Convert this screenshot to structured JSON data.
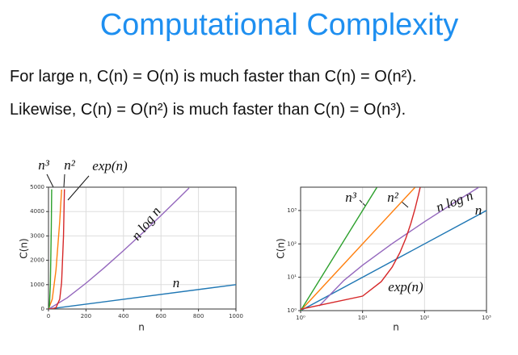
{
  "header": {
    "title": "Computational Complexity"
  },
  "body": [
    "For large n, C(n) = O(n) is much faster than C(n) = O(n²).",
    "Likewise, C(n) = O(n²) is much faster than C(n) = O(n³)."
  ],
  "chart_data": [
    {
      "type": "line",
      "xlabel": "n",
      "ylabel": "C(n)",
      "log_scale": false,
      "grid": true,
      "xlim": [
        0,
        1000
      ],
      "ylim": [
        0,
        5000
      ],
      "xticks": [
        0,
        200,
        400,
        600,
        800,
        1000
      ],
      "yticks": [
        0,
        1000,
        2000,
        3000,
        4000,
        5000
      ],
      "series": [
        {
          "name": "n",
          "color": "#1f77b4",
          "x": [
            0,
            1000
          ],
          "values": [
            0,
            1000
          ]
        },
        {
          "name": "n log n",
          "color": "#9467bd",
          "x": [
            1,
            100,
            200,
            300,
            400,
            500,
            600,
            700,
            750
          ],
          "values": [
            0,
            461,
            1060,
            1711,
            2397,
            3107,
            3838,
            4586,
            4965
          ]
        },
        {
          "name": "n²",
          "color": "#ff7f0e",
          "x": [
            0,
            20,
            40,
            60,
            70
          ],
          "values": [
            0,
            400,
            1600,
            3600,
            4900
          ]
        },
        {
          "name": "n³",
          "color": "#2ca02c",
          "x": [
            0,
            5,
            10,
            15,
            17
          ],
          "values": [
            0,
            125,
            1000,
            3375,
            4913
          ]
        },
        {
          "name": "exp(n)",
          "color": "#d62728",
          "x": [
            0,
            20,
            40,
            60,
            70,
            80,
            85
          ],
          "values": [
            1,
            7,
            55,
            403,
            1097,
            2981,
            4915
          ]
        }
      ]
    },
    {
      "type": "line",
      "xlabel": "n",
      "ylabel": "C(n)",
      "log_scale": true,
      "grid": true,
      "xlim": [
        1,
        1000
      ],
      "ylim": [
        1,
        5000
      ],
      "xticks": [
        {
          "value": 1,
          "label": "10⁰"
        },
        {
          "value": 10,
          "label": "10¹"
        },
        {
          "value": 100,
          "label": "10²"
        },
        {
          "value": 1000,
          "label": "10³"
        }
      ],
      "yticks": [
        {
          "value": 1,
          "label": "10⁰"
        },
        {
          "value": 10,
          "label": "10¹"
        },
        {
          "value": 100,
          "label": "10²"
        },
        {
          "value": 1000,
          "label": "10³"
        }
      ],
      "series": [
        {
          "name": "n",
          "color": "#1f77b4",
          "x": [
            1,
            1000
          ],
          "values": [
            1,
            1000
          ]
        },
        {
          "name": "n log n",
          "color": "#9467bd",
          "x": [
            2,
            5,
            10,
            30,
            100,
            300,
            750
          ],
          "values": [
            1.39,
            8.05,
            23.0,
            102,
            461,
            1711,
            4965
          ]
        },
        {
          "name": "n²",
          "color": "#ff7f0e",
          "x": [
            1,
            70
          ],
          "values": [
            1,
            4900
          ]
        },
        {
          "name": "n³",
          "color": "#2ca02c",
          "x": [
            1,
            17
          ],
          "values": [
            1,
            4913
          ]
        },
        {
          "name": "exp(n)",
          "color": "#d62728",
          "x": [
            1,
            10,
            20,
            30,
            40,
            50,
            60,
            70,
            80,
            85
          ],
          "values": [
            1.1,
            2.72,
            7.39,
            20.1,
            54.6,
            148,
            403,
            1097,
            2981,
            4915
          ]
        }
      ]
    }
  ]
}
